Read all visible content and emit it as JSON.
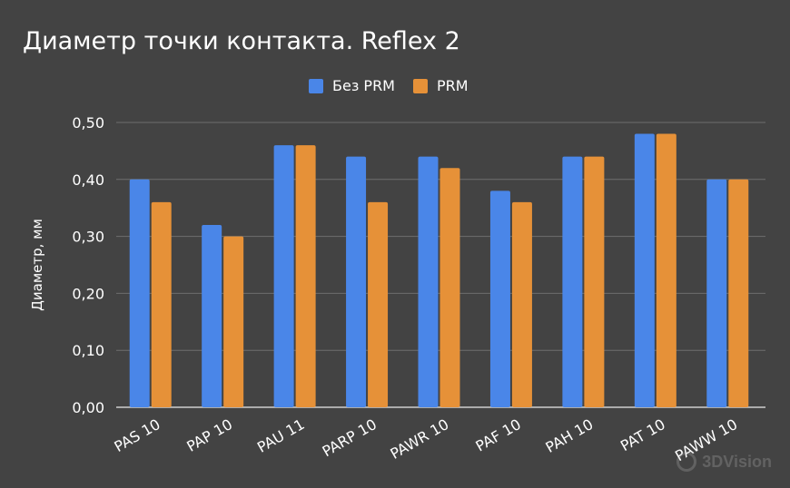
{
  "title": "Диаметр точки контакта. Reflex 2",
  "watermark": "3DVision",
  "colors": {
    "background": "#434343",
    "series1": "#4a86e8",
    "series2": "#e69138",
    "grid": "#6e6e6e",
    "text": "#ffffff"
  },
  "chart_data": {
    "type": "bar",
    "categories": [
      "PAS 10",
      "PAP 10",
      "PAU 11",
      "PARP 10",
      "PAWR 10",
      "PAF 10",
      "PAH 10",
      "PAT 10",
      "PAWW 10"
    ],
    "series": [
      {
        "name": "Без PRM",
        "values": [
          0.4,
          0.32,
          0.46,
          0.44,
          0.44,
          0.38,
          0.44,
          0.48,
          0.4
        ]
      },
      {
        "name": "PRM",
        "values": [
          0.36,
          0.3,
          0.46,
          0.36,
          0.42,
          0.36,
          0.44,
          0.48,
          0.4
        ]
      }
    ],
    "ylabel": "Диаметр, мм",
    "xlabel": "",
    "ylim": [
      0,
      0.5
    ],
    "yticks": [
      "0,00",
      "0,10",
      "0,20",
      "0,30",
      "0,40",
      "0,50"
    ],
    "grid": true,
    "legend": "top-center"
  }
}
